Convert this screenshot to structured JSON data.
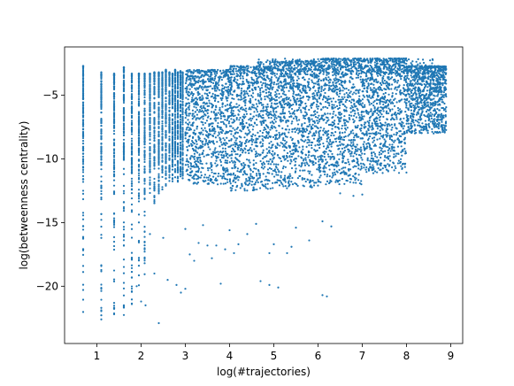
{
  "chart_data": {
    "type": "scatter",
    "title": "",
    "xlabel": "log(#trajectories)",
    "ylabel": "log(betweenness centrality)",
    "xlim": [
      0.27,
      9.27
    ],
    "ylim": [
      -24.5,
      -1.2
    ],
    "xticks": [
      1,
      2,
      3,
      4,
      5,
      6,
      7,
      8,
      9
    ],
    "yticks": [
      -5,
      -10,
      -15,
      -20
    ],
    "xtick_labels": [
      "1",
      "2",
      "3",
      "4",
      "5",
      "6",
      "7",
      "8",
      "9"
    ],
    "ytick_labels": [
      "−5",
      "−10",
      "−15",
      "−20"
    ],
    "grid": false,
    "legend": "none",
    "color": "#1f77b4",
    "columns": [
      {
        "x": 0.69,
        "ymin": -22.2,
        "ymax": -2.7
      },
      {
        "x": 1.1,
        "ymin": -23.0,
        "ymax": -3.2
      },
      {
        "x": 1.39,
        "ymin": -22.5,
        "ymax": -3.3
      },
      {
        "x": 1.61,
        "ymin": -23.3,
        "ymax": -2.8
      },
      {
        "x": 1.79,
        "ymin": -21.8,
        "ymax": -3.3
      },
      {
        "x": 1.95,
        "ymin": -22.5,
        "ymax": -3.3
      },
      {
        "x": 2.08,
        "ymin": -19.2,
        "ymax": -3.3
      },
      {
        "x": 2.2,
        "ymin": -13.5,
        "ymax": -3.3
      },
      {
        "x": 2.3,
        "ymin": -14.2,
        "ymax": -3.2
      },
      {
        "x": 2.4,
        "ymin": -12.8,
        "ymax": -3.2
      },
      {
        "x": 2.48,
        "ymin": -12.5,
        "ymax": -3.2
      },
      {
        "x": 2.56,
        "ymin": -12.2,
        "ymax": -3.0
      },
      {
        "x": 2.64,
        "ymin": -12.0,
        "ymax": -3.2
      },
      {
        "x": 2.71,
        "ymin": -12.0,
        "ymax": -3.3
      },
      {
        "x": 2.77,
        "ymin": -11.8,
        "ymax": -3.0
      },
      {
        "x": 2.83,
        "ymin": -11.8,
        "ymax": -3.2
      },
      {
        "x": 2.89,
        "ymin": -11.6,
        "ymax": -3.1
      },
      {
        "x": 2.94,
        "ymin": -11.6,
        "ymax": -3.2
      }
    ],
    "bands": [
      {
        "x_from": 3.0,
        "x_to": 4.0,
        "y_top": -3.0,
        "y_bottom": -12.0
      },
      {
        "x_from": 4.0,
        "x_to": 5.0,
        "y_top": -2.7,
        "y_bottom": -12.5
      },
      {
        "x_from": 5.0,
        "x_to": 6.0,
        "y_top": -2.3,
        "y_bottom": -12.3
      },
      {
        "x_from": 6.0,
        "x_to": 7.0,
        "y_top": -2.1,
        "y_bottom": -12.0
      },
      {
        "x_from": 7.0,
        "x_to": 8.0,
        "y_top": -2.1,
        "y_bottom": -11.2
      },
      {
        "x_from": 8.0,
        "x_to": 8.9,
        "y_top": -2.7,
        "y_bottom": -8.0
      }
    ],
    "outliers": [
      [
        2.2,
        -15.9
      ],
      [
        2.5,
        -16.2
      ],
      [
        2.6,
        -19.5
      ],
      [
        2.8,
        -19.9
      ],
      [
        2.9,
        -20.5
      ],
      [
        3.0,
        -20.2
      ],
      [
        3.1,
        -17.5
      ],
      [
        3.2,
        -18.0
      ],
      [
        3.3,
        -16.6
      ],
      [
        3.5,
        -16.8
      ],
      [
        3.6,
        -17.8
      ],
      [
        3.7,
        -16.8
      ],
      [
        3.9,
        -17.1
      ],
      [
        4.1,
        -17.4
      ],
      [
        4.2,
        -16.7
      ],
      [
        4.4,
        -15.9
      ],
      [
        4.6,
        -15.1
      ],
      [
        4.7,
        -19.6
      ],
      [
        4.9,
        -17.4
      ],
      [
        4.9,
        -19.9
      ],
      [
        5.0,
        -16.7
      ],
      [
        5.1,
        -20.1
      ],
      [
        5.3,
        -17.4
      ],
      [
        5.4,
        -16.9
      ],
      [
        5.5,
        -15.4
      ],
      [
        5.8,
        -16.4
      ],
      [
        6.1,
        -14.9
      ],
      [
        6.1,
        -20.7
      ],
      [
        6.2,
        -20.8
      ],
      [
        6.3,
        -15.3
      ],
      [
        6.5,
        -12.7
      ],
      [
        6.8,
        -12.9
      ],
      [
        7.0,
        -12.8
      ],
      [
        2.1,
        -21.5
      ],
      [
        1.9,
        -20.0
      ],
      [
        2.3,
        -19.0
      ],
      [
        2.4,
        -22.9
      ],
      [
        2.0,
        -21.2
      ],
      [
        3.0,
        -15.5
      ],
      [
        3.4,
        -15.2
      ],
      [
        4.0,
        -15.6
      ],
      [
        3.8,
        -19.8
      ]
    ]
  }
}
